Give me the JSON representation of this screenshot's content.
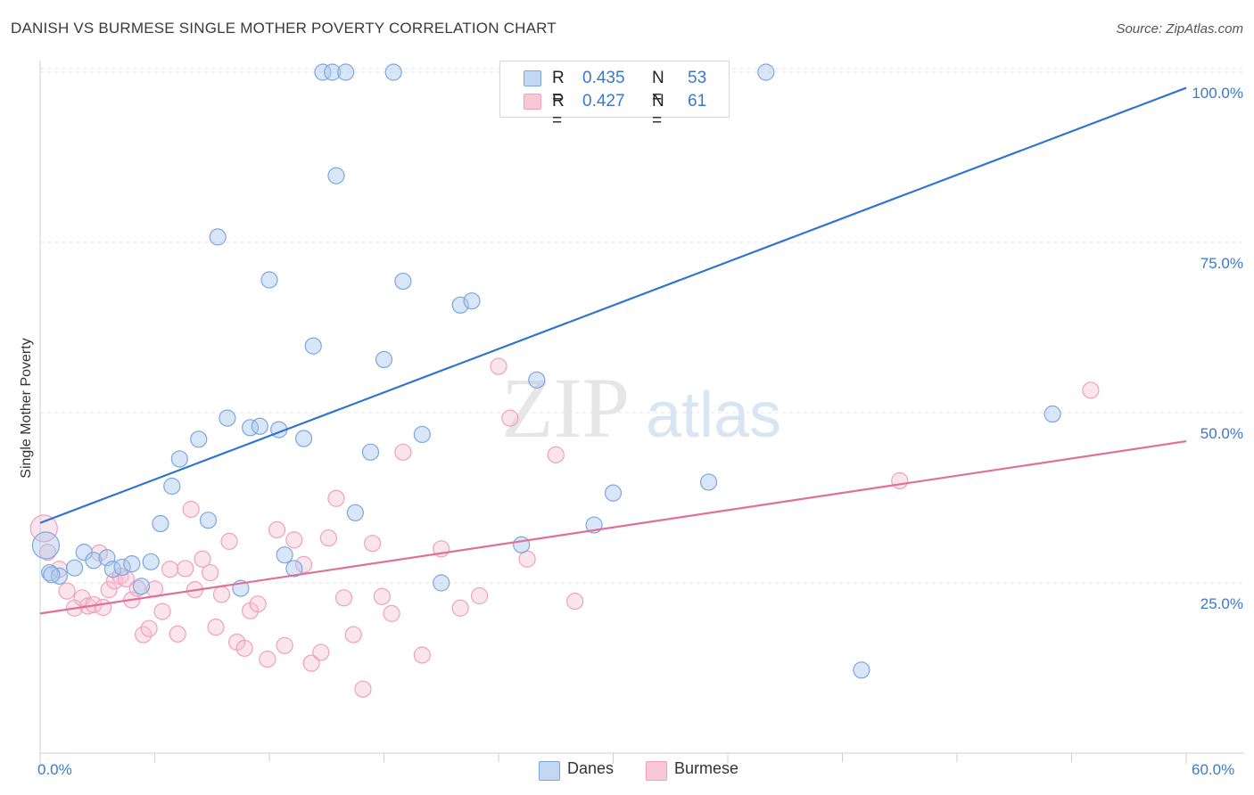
{
  "title": "DANISH VS BURMESE SINGLE MOTHER POVERTY CORRELATION CHART",
  "source": "Source: ZipAtlas.com",
  "watermark": {
    "zip": "ZIP",
    "atlas": "atlas"
  },
  "legend_stats": {
    "danes": {
      "r_label": "R =",
      "r_value": "0.435",
      "n_label": "N =",
      "n_value": "53"
    },
    "burmese": {
      "r_label": "R =",
      "r_value": "0.427",
      "n_label": "N =",
      "n_value": "61"
    }
  },
  "chart_data": {
    "type": "scatter",
    "title": "DANISH VS BURMESE SINGLE MOTHER POVERTY CORRELATION CHART",
    "ylabel": "Single Mother Poverty",
    "xlabel": "",
    "xlim": [
      0,
      60
    ],
    "ylim": [
      0,
      104
    ],
    "x_tick_labels": [
      "0.0%",
      "60.0%"
    ],
    "y_ticks": [
      25,
      50,
      75,
      100
    ],
    "y_tick_labels": [
      "25.0%",
      "50.0%",
      "75.0%",
      "100.0%"
    ],
    "grid": true,
    "legend_position": "bottom",
    "colors": {
      "danes": "#7aa7de",
      "danes_line": "#2f74d0",
      "burmese": "#f0a0bb",
      "burmese_line": "#e0709a"
    },
    "series": [
      {
        "name": "Danes",
        "r": 0.435,
        "n": 53,
        "trend": {
          "x": [
            0,
            60
          ],
          "y": [
            33.8,
            97.7
          ]
        },
        "points": [
          [
            0.3,
            30.5
          ],
          [
            0.5,
            26.5
          ],
          [
            1.0,
            26.0
          ],
          [
            1.8,
            27.2
          ],
          [
            2.3,
            29.5
          ],
          [
            2.8,
            28.3
          ],
          [
            3.5,
            28.7
          ],
          [
            3.8,
            27.0
          ],
          [
            4.3,
            27.3
          ],
          [
            4.8,
            27.8
          ],
          [
            5.3,
            24.5
          ],
          [
            5.8,
            28.1
          ],
          [
            6.3,
            33.7
          ],
          [
            6.9,
            39.2
          ],
          [
            7.3,
            43.2
          ],
          [
            8.3,
            46.1
          ],
          [
            8.8,
            34.2
          ],
          [
            9.3,
            75.8
          ],
          [
            9.8,
            49.2
          ],
          [
            10.5,
            24.2
          ],
          [
            11.0,
            47.8
          ],
          [
            11.5,
            48.0
          ],
          [
            12.0,
            69.5
          ],
          [
            12.5,
            47.5
          ],
          [
            12.8,
            29.1
          ],
          [
            13.3,
            27.1
          ],
          [
            13.8,
            46.2
          ],
          [
            14.3,
            59.8
          ],
          [
            14.8,
            100.0
          ],
          [
            15.3,
            100.0
          ],
          [
            15.5,
            84.8
          ],
          [
            16.0,
            100.0
          ],
          [
            16.5,
            35.3
          ],
          [
            17.3,
            44.2
          ],
          [
            18.0,
            57.8
          ],
          [
            18.5,
            100.0
          ],
          [
            19.0,
            69.3
          ],
          [
            20.0,
            46.8
          ],
          [
            21.0,
            25.0
          ],
          [
            22.0,
            65.8
          ],
          [
            22.6,
            66.4
          ],
          [
            24.5,
            100.0
          ],
          [
            25.2,
            30.6
          ],
          [
            26.0,
            54.8
          ],
          [
            27.0,
            100.0
          ],
          [
            29.0,
            33.5
          ],
          [
            30.0,
            38.2
          ],
          [
            31.0,
            100.0
          ],
          [
            35.0,
            39.8
          ],
          [
            38.0,
            100.0
          ],
          [
            43.0,
            12.2
          ],
          [
            53.0,
            49.8
          ],
          [
            0.6,
            26.2
          ]
        ]
      },
      {
        "name": "Burmese",
        "r": 0.427,
        "n": 61,
        "trend": {
          "x": [
            0,
            60
          ],
          "y": [
            20.5,
            45.8
          ]
        },
        "points": [
          [
            0.2,
            33.0
          ],
          [
            0.4,
            29.5
          ],
          [
            1.0,
            27.0
          ],
          [
            1.4,
            23.8
          ],
          [
            1.8,
            21.3
          ],
          [
            2.2,
            22.8
          ],
          [
            2.5,
            21.6
          ],
          [
            2.8,
            21.8
          ],
          [
            3.1,
            29.4
          ],
          [
            3.3,
            21.4
          ],
          [
            3.6,
            24.0
          ],
          [
            3.9,
            25.3
          ],
          [
            4.2,
            26.0
          ],
          [
            4.5,
            25.6
          ],
          [
            4.8,
            22.5
          ],
          [
            5.1,
            24.2
          ],
          [
            5.4,
            17.4
          ],
          [
            5.7,
            18.3
          ],
          [
            6.0,
            24.1
          ],
          [
            6.4,
            20.8
          ],
          [
            6.8,
            27.0
          ],
          [
            7.2,
            17.5
          ],
          [
            7.6,
            27.1
          ],
          [
            7.9,
            35.8
          ],
          [
            8.1,
            24.0
          ],
          [
            8.5,
            28.5
          ],
          [
            8.9,
            26.5
          ],
          [
            9.2,
            18.5
          ],
          [
            9.5,
            23.3
          ],
          [
            9.9,
            31.1
          ],
          [
            10.3,
            16.3
          ],
          [
            10.7,
            15.4
          ],
          [
            11.0,
            20.9
          ],
          [
            11.4,
            21.9
          ],
          [
            11.9,
            13.8
          ],
          [
            12.4,
            32.8
          ],
          [
            12.8,
            15.8
          ],
          [
            13.3,
            31.3
          ],
          [
            13.8,
            27.7
          ],
          [
            14.2,
            13.2
          ],
          [
            14.7,
            14.8
          ],
          [
            15.1,
            31.6
          ],
          [
            15.5,
            37.4
          ],
          [
            15.9,
            22.8
          ],
          [
            16.4,
            17.4
          ],
          [
            16.9,
            9.4
          ],
          [
            17.4,
            30.8
          ],
          [
            17.9,
            23.0
          ],
          [
            18.4,
            20.5
          ],
          [
            19.0,
            44.2
          ],
          [
            20.0,
            14.4
          ],
          [
            21.0,
            30.0
          ],
          [
            22.0,
            21.3
          ],
          [
            23.0,
            23.1
          ],
          [
            24.0,
            56.8
          ],
          [
            24.6,
            49.2
          ],
          [
            25.5,
            28.5
          ],
          [
            27.0,
            43.8
          ],
          [
            28.0,
            22.3
          ],
          [
            45.0,
            40.0
          ],
          [
            55.0,
            53.3
          ]
        ]
      }
    ]
  }
}
